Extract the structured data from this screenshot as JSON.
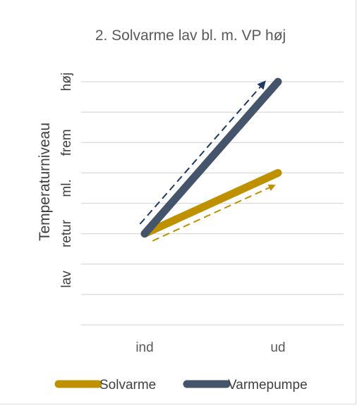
{
  "chart_data": {
    "type": "line",
    "title": "2. Solvarme lav bl. m. VP høj",
    "ylabel": "Temperaturniveau",
    "xlabel": "",
    "categories": [
      "ind",
      "ud"
    ],
    "ylim": [
      0,
      8
    ],
    "y_tick_labels": [
      {
        "label": "lav",
        "value": 1.5
      },
      {
        "label": "retur",
        "value": 3
      },
      {
        "label": "ml.",
        "value": 4.5
      },
      {
        "label": "frem",
        "value": 6
      },
      {
        "label": "høj",
        "value": 8
      }
    ],
    "grid": true,
    "legend_position": "bottom",
    "series": [
      {
        "name": "Solvarme",
        "values": [
          3,
          5
        ],
        "color": "#BF9000"
      },
      {
        "name": "Varmepumpe",
        "values": [
          3,
          8
        ],
        "color": "#44546A"
      }
    ],
    "annotations": [
      {
        "type": "dashed-arrow",
        "series": "Solvarme",
        "color": "#BF9000"
      },
      {
        "type": "dashed-arrow",
        "series": "Varmepumpe",
        "color": "#1F3864"
      }
    ]
  }
}
